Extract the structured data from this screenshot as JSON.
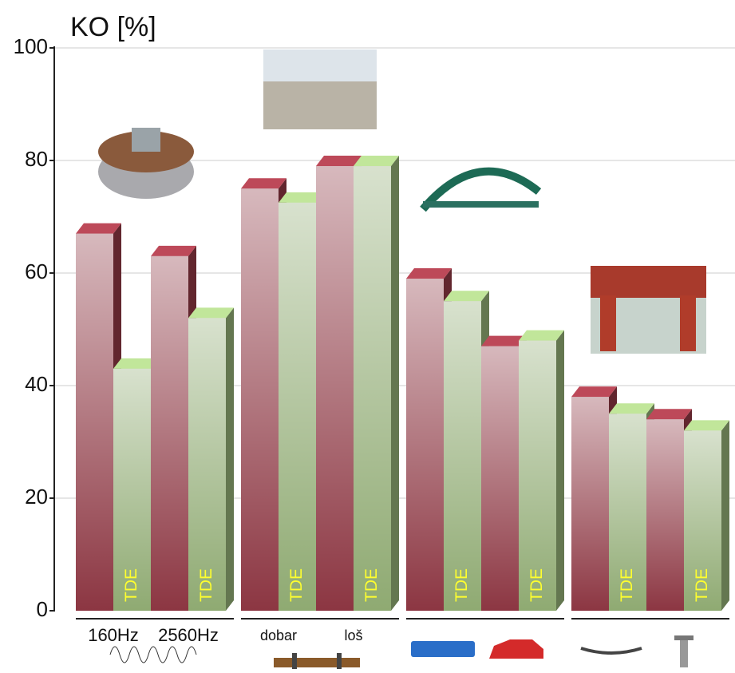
{
  "chart_data": {
    "type": "bar3d",
    "title": "KO [%]",
    "categories": [
      "160Hz",
      "2560Hz",
      "dobar",
      "loš",
      null,
      null,
      null,
      null
    ],
    "series": [
      {
        "color": "#8c3642",
        "values": [
          67,
          63,
          75,
          79,
          59,
          47,
          38,
          34
        ]
      },
      {
        "name": "TDE",
        "color": "#8faa72",
        "values": [
          43,
          52,
          72.5,
          79,
          55,
          48,
          35,
          32
        ]
      }
    ],
    "ylim": [
      0,
      100
    ],
    "yticks": [
      0,
      20,
      40,
      60,
      80,
      100
    ],
    "grid": true
  }
}
